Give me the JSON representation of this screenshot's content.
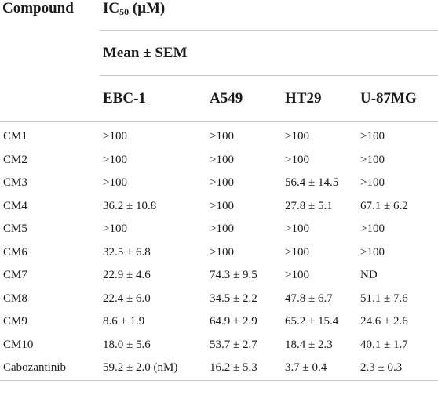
{
  "header": {
    "compound_label": "Compound",
    "ic_prefix": "IC",
    "ic_subscript": "50",
    "ic_unit": " (μM)",
    "mean_label": "Mean ± SEM",
    "columns": [
      "EBC-1",
      "A549",
      "HT29",
      "U-87MG"
    ]
  },
  "rows": [
    {
      "compound": "CM1",
      "values": [
        ">100",
        ">100",
        ">100",
        ">100"
      ]
    },
    {
      "compound": "CM2",
      "values": [
        ">100",
        ">100",
        ">100",
        ">100"
      ]
    },
    {
      "compound": "CM3",
      "values": [
        ">100",
        ">100",
        "56.4 ± 14.5",
        ">100"
      ]
    },
    {
      "compound": "CM4",
      "values": [
        "36.2 ± 10.8",
        ">100",
        "27.8 ± 5.1",
        "67.1 ± 6.2"
      ]
    },
    {
      "compound": "CM5",
      "values": [
        ">100",
        ">100",
        ">100",
        ">100"
      ]
    },
    {
      "compound": "CM6",
      "values": [
        "32.5 ± 6.8",
        ">100",
        ">100",
        ">100"
      ]
    },
    {
      "compound": "CM7",
      "values": [
        "22.9 ± 4.6",
        "74.3 ± 9.5",
        ">100",
        "ND"
      ]
    },
    {
      "compound": "CM8",
      "values": [
        "22.4 ± 6.0",
        "34.5 ± 2.2",
        "47.8 ± 6.7",
        "51.1 ± 7.6"
      ]
    },
    {
      "compound": "CM9",
      "values": [
        "8.6 ± 1.9",
        "64.9 ± 2.9",
        "65.2 ± 15.4",
        "24.6 ± 2.6"
      ]
    },
    {
      "compound": "CM10",
      "values": [
        "18.0 ± 5.6",
        "53.7 ± 2.7",
        "18.4 ± 2.3",
        "40.1 ± 1.7"
      ]
    },
    {
      "compound": "Cabozantinib",
      "values": [
        "59.2 ± 2.0 (nM)",
        "16.2 ± 5.3",
        "3.7 ± 0.4",
        "2.3 ± 0.3"
      ]
    }
  ]
}
